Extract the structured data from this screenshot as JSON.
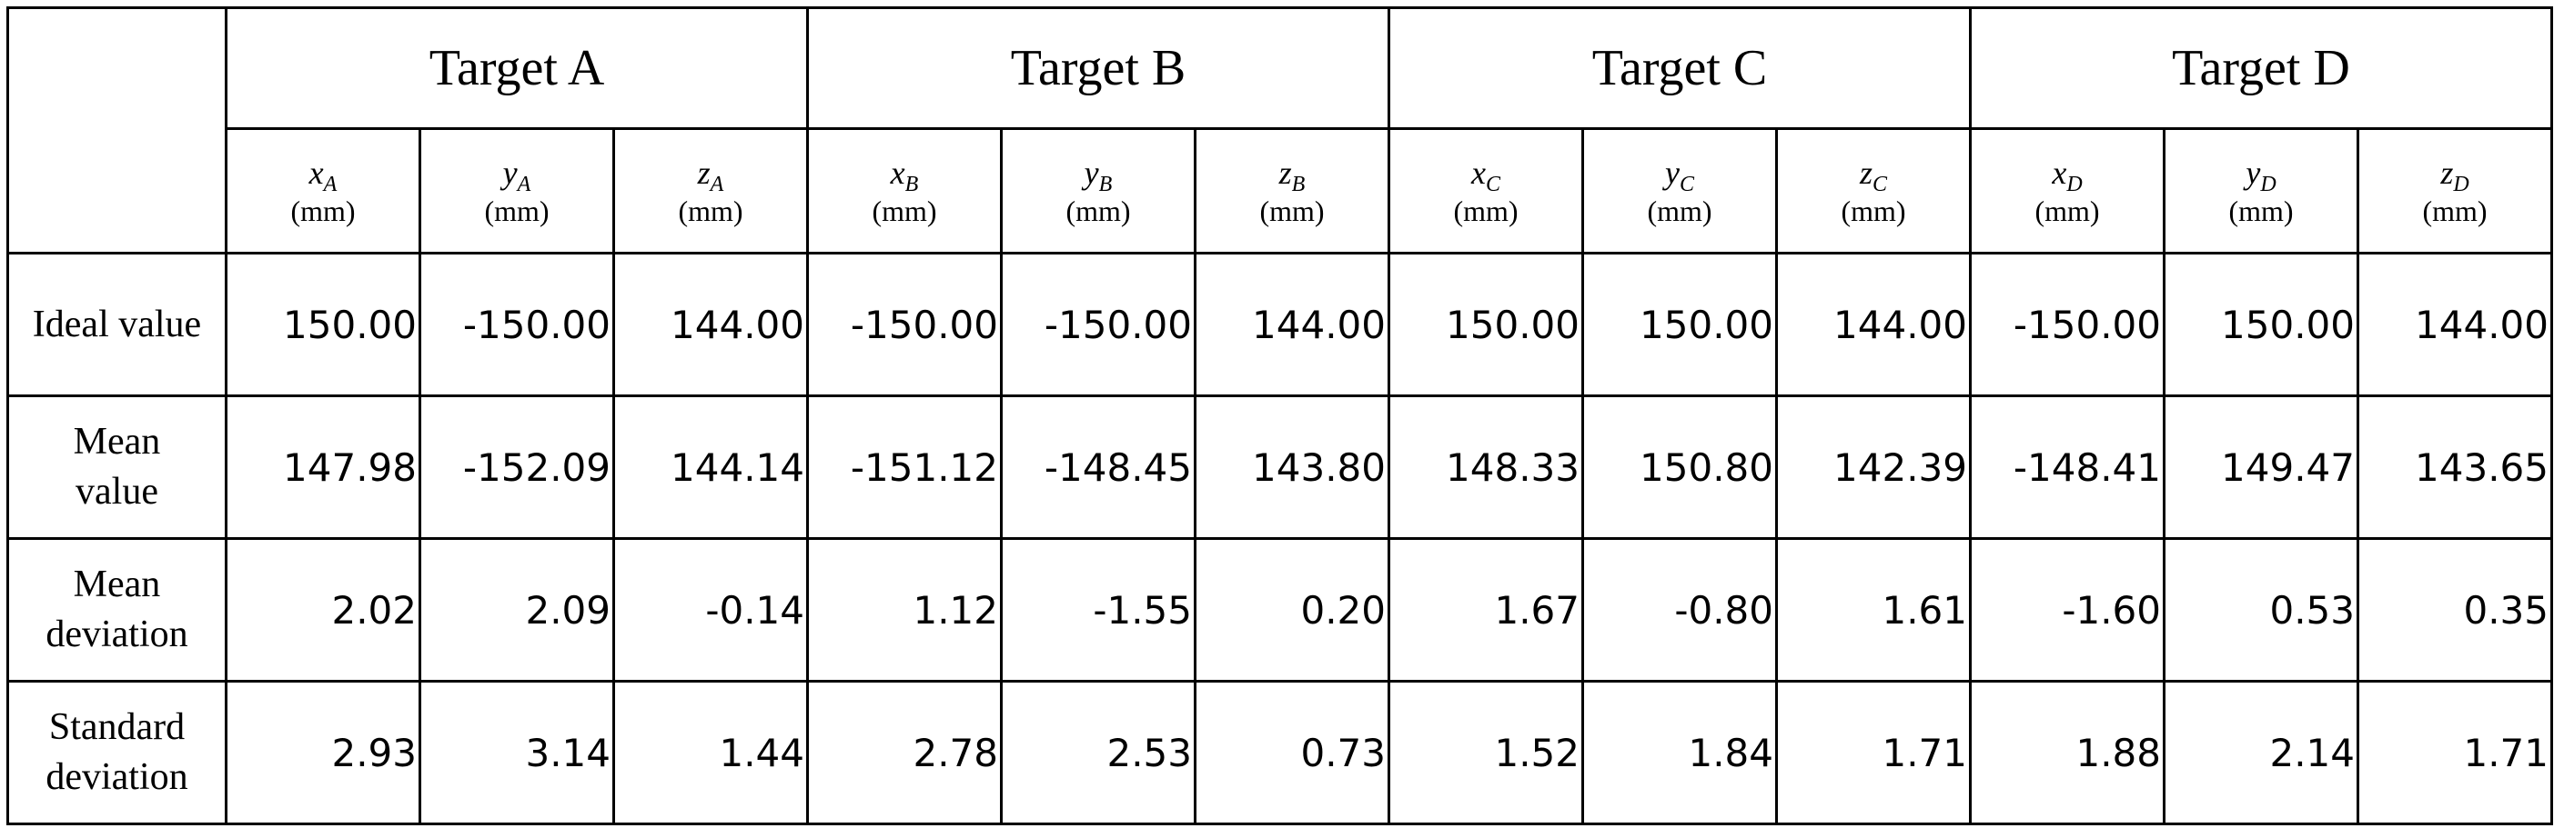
{
  "table": {
    "groups": [
      "Target A",
      "Target B",
      "Target C",
      "Target D"
    ],
    "subheaders": [
      {
        "var": "x",
        "sub": "A",
        "unit": "(mm)"
      },
      {
        "var": "y",
        "sub": "A",
        "unit": "(mm)"
      },
      {
        "var": "z",
        "sub": "A",
        "unit": "(mm)"
      },
      {
        "var": "x",
        "sub": "B",
        "unit": "(mm)"
      },
      {
        "var": "y",
        "sub": "B",
        "unit": "(mm)"
      },
      {
        "var": "z",
        "sub": "B",
        "unit": "(mm)"
      },
      {
        "var": "x",
        "sub": "C",
        "unit": "(mm)"
      },
      {
        "var": "y",
        "sub": "C",
        "unit": "(mm)"
      },
      {
        "var": "z",
        "sub": "C",
        "unit": "(mm)"
      },
      {
        "var": "x",
        "sub": "D",
        "unit": "(mm)"
      },
      {
        "var": "y",
        "sub": "D",
        "unit": "(mm)"
      },
      {
        "var": "z",
        "sub": "D",
        "unit": "(mm)"
      }
    ],
    "rows": [
      {
        "label": "Ideal value",
        "values": [
          "150.00",
          "-150.00",
          "144.00",
          "-150.00",
          "-150.00",
          "144.00",
          "150.00",
          "150.00",
          "144.00",
          "-150.00",
          "150.00",
          "144.00"
        ]
      },
      {
        "label": "Mean\nvalue",
        "values": [
          "147.98",
          "-152.09",
          "144.14",
          "-151.12",
          "-148.45",
          "143.80",
          "148.33",
          "150.80",
          "142.39",
          "-148.41",
          "149.47",
          "143.65"
        ]
      },
      {
        "label": "Mean\ndeviation",
        "values": [
          "2.02",
          "2.09",
          "-0.14",
          "1.12",
          "-1.55",
          "0.20",
          "1.67",
          "-0.80",
          "1.61",
          "-1.60",
          "0.53",
          "0.35"
        ]
      },
      {
        "label": "Standard\ndeviation",
        "values": [
          "2.93",
          "3.14",
          "1.44",
          "2.78",
          "2.53",
          "0.73",
          "1.52",
          "1.84",
          "1.71",
          "1.88",
          "2.14",
          "1.71"
        ]
      }
    ]
  }
}
